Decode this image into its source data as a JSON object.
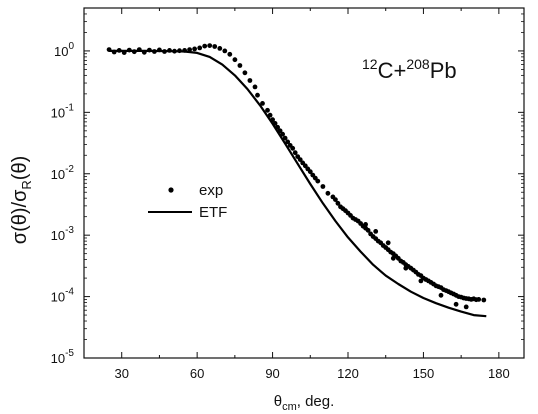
{
  "chart_data": {
    "type": "scatter",
    "x_axis": {
      "label_main": "θ",
      "label_sub": "cm",
      "label_rest": ", deg.",
      "range": [
        15,
        190
      ],
      "ticks": [
        30,
        60,
        90,
        120,
        150,
        180
      ],
      "tick_labels": [
        "30",
        "60",
        "90",
        "120",
        "150",
        "180"
      ]
    },
    "y_axis": {
      "scale": "log",
      "label_a": "σ(θ)/σ",
      "label_sub": "R",
      "label_b": "(θ)",
      "range": [
        1e-05,
        5
      ],
      "ticks": [
        1,
        0.1,
        0.01,
        0.001,
        0.0001,
        1e-05
      ],
      "tick_mantissa": [
        "10",
        "10",
        "10",
        "10",
        "10",
        "10"
      ],
      "tick_exponents": [
        "0",
        "-1",
        "-2",
        "-3",
        "-4",
        "-5"
      ]
    },
    "annotation": {
      "pre": "12",
      "mid": "C+",
      "sup": "208",
      "post": "Pb"
    },
    "legend": {
      "placement": "center-left",
      "entries": [
        {
          "label": "exp",
          "marker": "dot"
        },
        {
          "label": "ETF",
          "marker": "line"
        }
      ]
    },
    "series": [
      {
        "name": "exp",
        "style": "dots",
        "color": "#000000",
        "points": [
          [
            25,
            1.05
          ],
          [
            27,
            0.96
          ],
          [
            29,
            1.02
          ],
          [
            31,
            0.94
          ],
          [
            33,
            1.03
          ],
          [
            35,
            0.97
          ],
          [
            37,
            1.05
          ],
          [
            39,
            0.95
          ],
          [
            41,
            1.03
          ],
          [
            43,
            0.98
          ],
          [
            45,
            1.04
          ],
          [
            47,
            0.98
          ],
          [
            49,
            1.02
          ],
          [
            51,
            0.99
          ],
          [
            53,
            1.01
          ],
          [
            55,
            1.02
          ],
          [
            57,
            1.05
          ],
          [
            59,
            1.08
          ],
          [
            61,
            1.12
          ],
          [
            63,
            1.2
          ],
          [
            65,
            1.22
          ],
          [
            67,
            1.18
          ],
          [
            69,
            1.1
          ],
          [
            71,
            1.0
          ],
          [
            73,
            0.88
          ],
          [
            75,
            0.72
          ],
          [
            77,
            0.58
          ],
          [
            79,
            0.44
          ],
          [
            81,
            0.33
          ],
          [
            83,
            0.26
          ],
          [
            84,
            0.19
          ],
          [
            86,
            0.14
          ],
          [
            88,
            0.108
          ],
          [
            89,
            0.09
          ],
          [
            90,
            0.076
          ],
          [
            91,
            0.066
          ],
          [
            92,
            0.057
          ],
          [
            93,
            0.05
          ],
          [
            94,
            0.044
          ],
          [
            95,
            0.038
          ],
          [
            96,
            0.033
          ],
          [
            97,
            0.029
          ],
          [
            98,
            0.026
          ],
          [
            99,
            0.022
          ],
          [
            100,
            0.019
          ],
          [
            101,
            0.017
          ],
          [
            102,
            0.015
          ],
          [
            103,
            0.0135
          ],
          [
            104,
            0.012
          ],
          [
            105,
            0.0108
          ],
          [
            106,
            0.0095
          ],
          [
            107,
            0.0085
          ],
          [
            108,
            0.0076
          ],
          [
            110,
            0.0062
          ],
          [
            112,
            0.0048
          ],
          [
            114,
            0.0042
          ],
          [
            115,
            0.0038
          ],
          [
            116,
            0.0033
          ],
          [
            117,
            0.0029
          ],
          [
            118,
            0.0027
          ],
          [
            119,
            0.0025
          ],
          [
            120,
            0.0023
          ],
          [
            121,
            0.0021
          ],
          [
            122,
            0.0019
          ],
          [
            123,
            0.0018
          ],
          [
            124,
            0.0017
          ],
          [
            125,
            0.00155
          ],
          [
            126,
            0.0014
          ],
          [
            127,
            0.0013
          ],
          [
            128,
            0.0012
          ],
          [
            129,
            0.00105
          ],
          [
            130,
            0.00095
          ],
          [
            131,
            0.00088
          ],
          [
            132,
            0.0008
          ],
          [
            133,
            0.00075
          ],
          [
            134,
            0.00068
          ],
          [
            135,
            0.00063
          ],
          [
            136,
            0.00058
          ],
          [
            137,
            0.00053
          ],
          [
            138,
            0.0005
          ],
          [
            139,
            0.00046
          ],
          [
            140,
            0.00042
          ],
          [
            141,
            0.00038
          ],
          [
            142,
            0.00036
          ],
          [
            143,
            0.00033
          ],
          [
            144,
            0.00031
          ],
          [
            145,
            0.00029
          ],
          [
            146,
            0.00027
          ],
          [
            147,
            0.00025
          ],
          [
            148,
            0.00023
          ],
          [
            149,
            0.00022
          ],
          [
            150,
            0.0002
          ],
          [
            151,
            0.00019
          ],
          [
            152,
            0.00018
          ],
          [
            153,
            0.00017
          ],
          [
            154,
            0.00016
          ],
          [
            155,
            0.00015
          ],
          [
            156,
            0.000145
          ],
          [
            157,
            0.00014
          ],
          [
            158,
            0.00013
          ],
          [
            159,
            0.000125
          ],
          [
            160,
            0.00012
          ],
          [
            161,
            0.000115
          ],
          [
            162,
            0.00011
          ],
          [
            163,
            0.000105
          ],
          [
            164,
            0.0001
          ],
          [
            165,
            9.8e-05
          ],
          [
            166,
            9.5e-05
          ],
          [
            167,
            9.3e-05
          ],
          [
            168,
            9.2e-05
          ],
          [
            169,
            9e-05
          ],
          [
            170,
            9.2e-05
          ],
          [
            171,
            8.9e-05
          ],
          [
            172,
            9e-05
          ],
          [
            174,
            8.8e-05
          ],
          [
            136,
            0.00075
          ],
          [
            127,
            0.0015
          ],
          [
            131,
            0.00115
          ],
          [
            138,
            0.00042
          ],
          [
            143,
            0.00029
          ],
          [
            149,
            0.00018
          ],
          [
            157,
            0.000105
          ],
          [
            163,
            7.5e-05
          ],
          [
            167,
            6.8e-05
          ]
        ]
      },
      {
        "name": "ETF",
        "style": "line",
        "color": "#000000",
        "points": [
          [
            25,
            1.0
          ],
          [
            30,
            1.0
          ],
          [
            40,
            1.0
          ],
          [
            50,
            0.99
          ],
          [
            55,
            0.98
          ],
          [
            60,
            0.93
          ],
          [
            65,
            0.8
          ],
          [
            70,
            0.6
          ],
          [
            75,
            0.4
          ],
          [
            80,
            0.24
          ],
          [
            85,
            0.13
          ],
          [
            90,
            0.065
          ],
          [
            95,
            0.031
          ],
          [
            100,
            0.0145
          ],
          [
            105,
            0.0068
          ],
          [
            110,
            0.0033
          ],
          [
            115,
            0.0017
          ],
          [
            120,
            0.00092
          ],
          [
            125,
            0.00054
          ],
          [
            130,
            0.00033
          ],
          [
            135,
            0.00022
          ],
          [
            140,
            0.00016
          ],
          [
            145,
            0.00012
          ],
          [
            150,
            9.5e-05
          ],
          [
            155,
            7.8e-05
          ],
          [
            160,
            6.6e-05
          ],
          [
            165,
            5.7e-05
          ],
          [
            170,
            5e-05
          ],
          [
            175,
            4.8e-05
          ]
        ]
      }
    ]
  }
}
